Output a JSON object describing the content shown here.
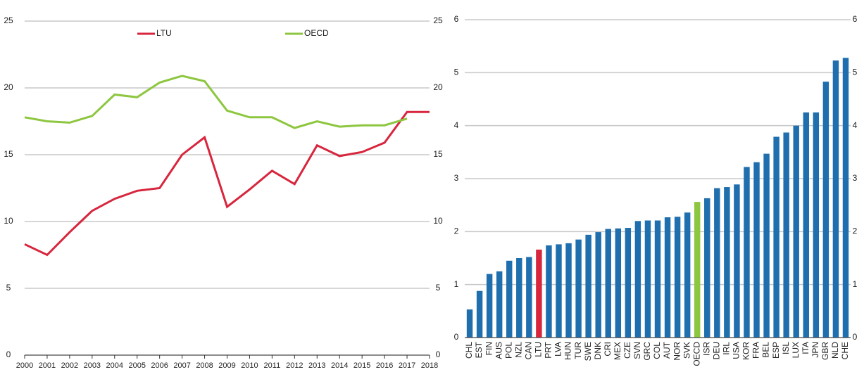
{
  "chart_data": [
    {
      "type": "line",
      "x": [
        2000,
        2001,
        2002,
        2003,
        2004,
        2005,
        2006,
        2007,
        2008,
        2009,
        2010,
        2011,
        2012,
        2013,
        2014,
        2015,
        2016,
        2017,
        2018
      ],
      "xlim": [
        2000,
        2018
      ],
      "series": [
        {
          "name": "LTU",
          "color": "#d7263d",
          "values": [
            8.3,
            7.5,
            9.2,
            10.8,
            11.7,
            12.3,
            12.5,
            15.0,
            16.3,
            11.1,
            12.4,
            13.8,
            12.8,
            15.7,
            14.9,
            15.2,
            15.9,
            18.2,
            18.2
          ]
        },
        {
          "name": "OECD",
          "color": "#8dc63f",
          "values": [
            17.8,
            17.5,
            17.4,
            17.9,
            19.5,
            19.3,
            20.4,
            20.9,
            20.5,
            18.3,
            17.8,
            17.8,
            17.0,
            17.5,
            17.1,
            17.2,
            17.2,
            17.7,
            null
          ]
        }
      ],
      "ylim": [
        0,
        25
      ],
      "yticks": [
        0,
        5,
        10,
        15,
        20,
        25
      ],
      "y2lim": [
        0,
        25
      ],
      "y2ticks": [
        0,
        5,
        10,
        15,
        20,
        25
      ],
      "grid": true,
      "legend": "top"
    },
    {
      "type": "bar",
      "categories": [
        "CHL",
        "EST",
        "FIN",
        "AUS",
        "POL",
        "NZL",
        "CAN",
        "LTU",
        "PRT",
        "LVA",
        "HUN",
        "TUR",
        "SWE",
        "DNK",
        "CRI",
        "MEX",
        "CZE",
        "SVN",
        "GRC",
        "COL",
        "AUT",
        "NOR",
        "SVK",
        "OECD",
        "ISR",
        "DEU",
        "IRL",
        "USA",
        "KOR",
        "FRA",
        "BEL",
        "ESP",
        "ISL",
        "LUX",
        "ITA",
        "JPN",
        "GBR",
        "NLD",
        "CHE"
      ],
      "values": [
        0.53,
        0.88,
        1.2,
        1.25,
        1.45,
        1.5,
        1.52,
        1.66,
        1.74,
        1.76,
        1.78,
        1.85,
        1.94,
        1.99,
        2.05,
        2.06,
        2.07,
        2.2,
        2.21,
        2.21,
        2.27,
        2.28,
        2.36,
        2.56,
        2.63,
        2.82,
        2.84,
        2.89,
        3.22,
        3.31,
        3.47,
        3.79,
        3.87,
        4.0,
        4.25,
        4.25,
        4.83,
        5.23,
        5.28
      ],
      "colors": [
        "#1f6fae",
        "#1f6fae",
        "#1f6fae",
        "#1f6fae",
        "#1f6fae",
        "#1f6fae",
        "#1f6fae",
        "#d7263d",
        "#1f6fae",
        "#1f6fae",
        "#1f6fae",
        "#1f6fae",
        "#1f6fae",
        "#1f6fae",
        "#1f6fae",
        "#1f6fae",
        "#1f6fae",
        "#1f6fae",
        "#1f6fae",
        "#1f6fae",
        "#1f6fae",
        "#1f6fae",
        "#1f6fae",
        "#8dc63f",
        "#1f6fae",
        "#1f6fae",
        "#1f6fae",
        "#1f6fae",
        "#1f6fae",
        "#1f6fae",
        "#1f6fae",
        "#1f6fae",
        "#1f6fae",
        "#1f6fae",
        "#1f6fae",
        "#1f6fae",
        "#1f6fae",
        "#1f6fae",
        "#1f6fae"
      ],
      "ylim": [
        0,
        6
      ],
      "yticks": [
        0,
        1,
        2,
        3,
        4,
        5,
        6
      ],
      "y2lim": [
        0,
        6
      ],
      "y2ticks": [
        0,
        1,
        2,
        3,
        4,
        5,
        6
      ],
      "grid": true
    }
  ]
}
